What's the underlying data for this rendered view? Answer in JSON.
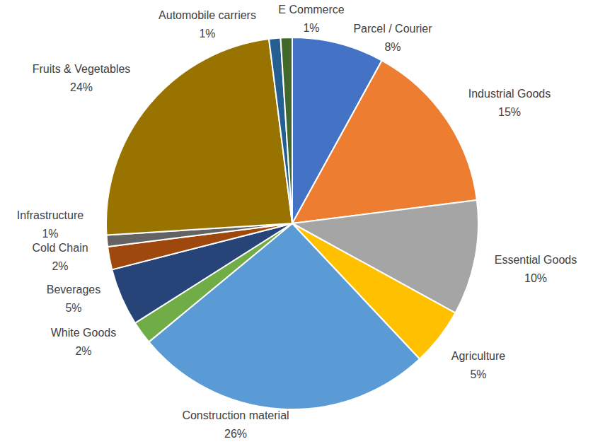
{
  "chart_data": {
    "type": "pie",
    "categories": [
      "Parcel / Courier",
      "Industrial Goods",
      "Essential Goods",
      "Agriculture",
      "Construction material",
      "White Goods",
      "Beverages",
      "Cold Chain",
      "Infrastructure",
      "Fruits & Vegetables",
      "Automobile carriers",
      "E Commerce"
    ],
    "values": [
      8,
      15,
      10,
      5,
      26,
      2,
      5,
      2,
      1,
      24,
      1,
      1
    ],
    "value_labels": [
      "8%",
      "15%",
      "10%",
      "5%",
      "26%",
      "2%",
      "5%",
      "2%",
      "1%",
      "24%",
      "1%",
      "1%"
    ],
    "colors": [
      "#4472c4",
      "#ed7d31",
      "#a5a5a5",
      "#ffc000",
      "#5b9bd5",
      "#70ad47",
      "#264478",
      "#9e480e",
      "#636363",
      "#997300",
      "#255e91",
      "#43682b"
    ],
    "data_labels": true
  }
}
